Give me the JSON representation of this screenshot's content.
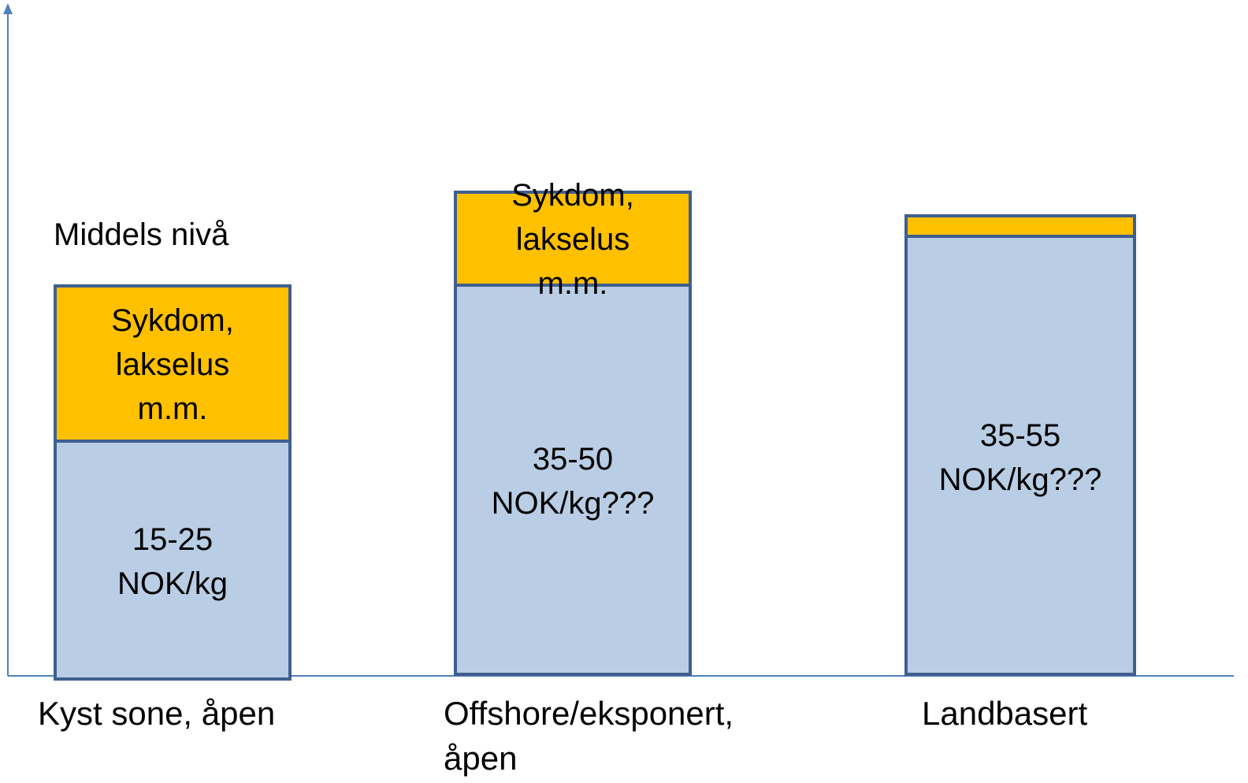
{
  "note_label": "Middels nivå",
  "bars": [
    {
      "category": "Kyst sone, åpen",
      "top_label": "Sykdom,\nlakselus\nm.m.",
      "base_label": "15-25\nNOK/kg"
    },
    {
      "category": "Offshore/eksponert,\nåpen",
      "top_label": "Sykdom,\nlakselus\nm.m.",
      "base_label": "35-50\nNOK/kg???"
    },
    {
      "category": "Landbasert",
      "base_label": "35-55\nNOK/kg???"
    }
  ]
}
